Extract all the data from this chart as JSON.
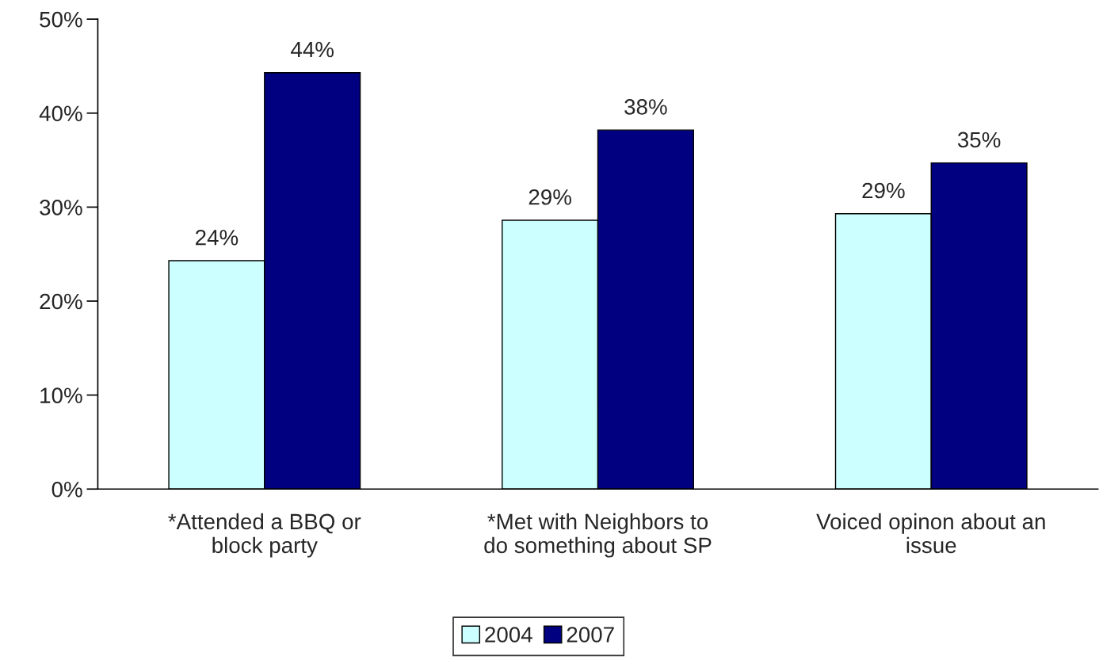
{
  "chart_data": {
    "type": "bar",
    "categories": [
      "*Attended a BBQ or\nblock party",
      "*Met with Neighbors to\ndo something about SP",
      "Voiced opinon about an\nissue"
    ],
    "series": [
      {
        "name": "2004",
        "color": "#ccffff",
        "values": [
          24.3,
          28.6,
          29.3
        ],
        "value_labels": [
          "24%",
          "29%",
          "29%"
        ]
      },
      {
        "name": "2007",
        "color": "#000080",
        "values": [
          44.3,
          38.2,
          34.7
        ],
        "value_labels": [
          "44%",
          "38%",
          "35%"
        ]
      }
    ],
    "ylim": [
      0,
      50
    ],
    "yticks": [
      {
        "value": 0,
        "label": "0%"
      },
      {
        "value": 10,
        "label": "10%"
      },
      {
        "value": 20,
        "label": "20%"
      },
      {
        "value": 30,
        "label": "30%"
      },
      {
        "value": 40,
        "label": "40%"
      },
      {
        "value": 50,
        "label": "50%"
      }
    ],
    "grid": false,
    "legend": "bottom"
  }
}
